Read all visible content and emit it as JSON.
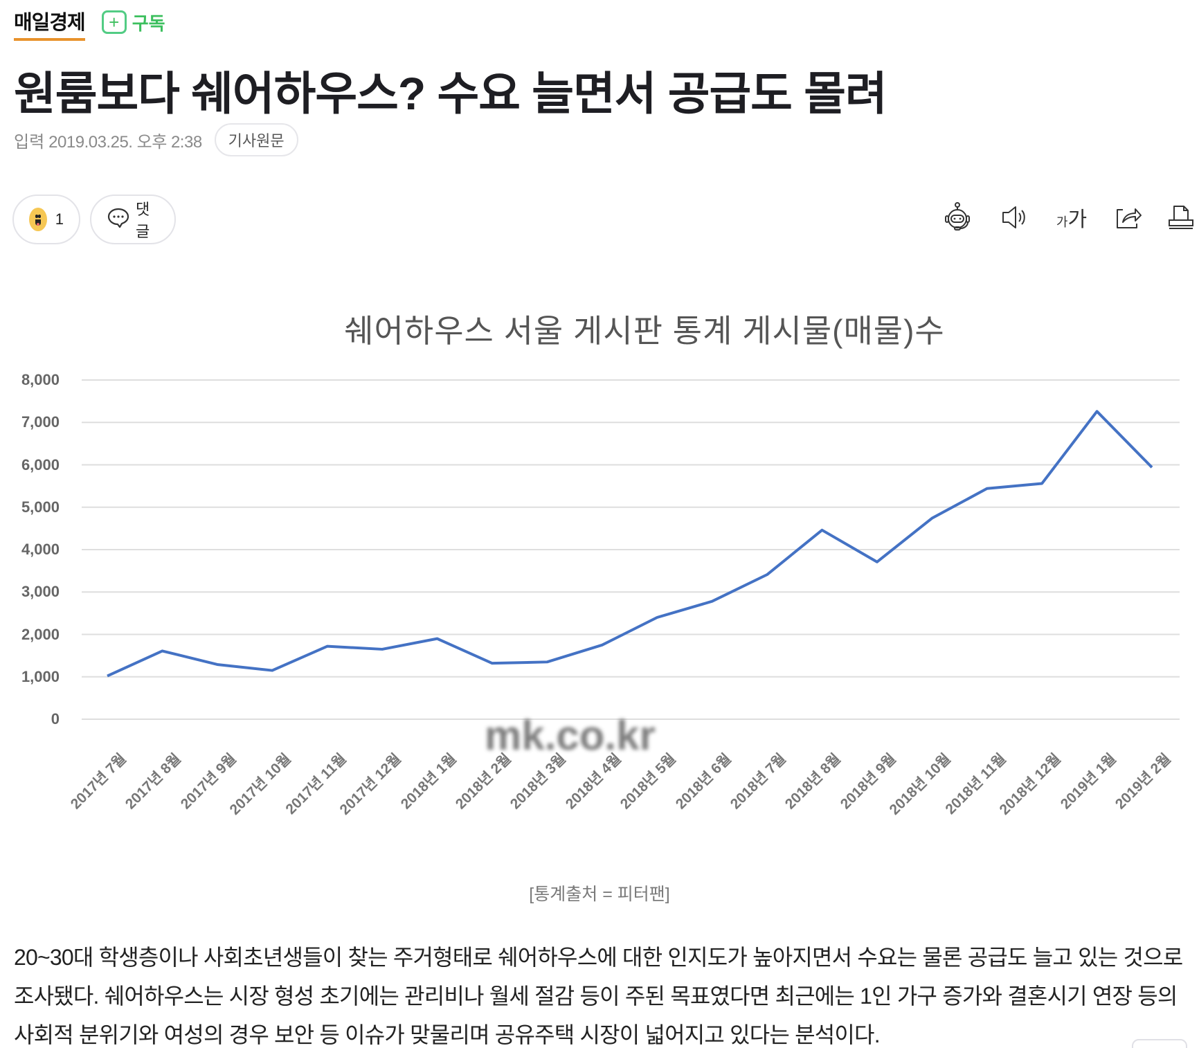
{
  "press": {
    "name": "매일경제",
    "accent_color": "#e8922c",
    "subscribe_icon": "plus-icon",
    "subscribe_label": "구독",
    "subscribe_color": "#3cbf5e"
  },
  "article": {
    "headline": "원룸보다 쉐어하우스? 수요 늘면서 공급도 몰려",
    "published_label": "입력",
    "published_date": "2019.03.25. 오후 2:38",
    "original_link_label": "기사원문"
  },
  "actions": {
    "reaction_icon": "smile-emoji-icon",
    "reaction_count": "1",
    "comment_icon": "speech-bubble-icon",
    "comment_label": "댓글"
  },
  "tools": [
    {
      "name": "summary-bot-icon"
    },
    {
      "name": "text-to-speech-icon"
    },
    {
      "name": "font-size-icon",
      "small": "가",
      "large": "가"
    },
    {
      "name": "share-icon"
    },
    {
      "name": "print-icon"
    }
  ],
  "chart_data": {
    "type": "line",
    "title": "쉐어하우스 서울 게시판 통계 게시물(매물)수",
    "xlabel": "",
    "ylabel": "",
    "ylim": [
      0,
      8000
    ],
    "yticks": [
      "0",
      "1,000",
      "2,000",
      "3,000",
      "4,000",
      "5,000",
      "6,000",
      "7,000",
      "8,000"
    ],
    "grid": true,
    "legend": "none",
    "line_color": "#4472c4",
    "categories": [
      "2017년 7월",
      "2017년 8월",
      "2017년 9월",
      "2017년 10월",
      "2017년 11월",
      "2017년 12월",
      "2018년 1월",
      "2018년 2월",
      "2018년 3월",
      "2018년 4월",
      "2018년 5월",
      "2018년 6월",
      "2018년 7월",
      "2018년 8월",
      "2018년 9월",
      "2018년 10월",
      "2018년 11월",
      "2018년 12월",
      "2019년 1월",
      "2019년 2월"
    ],
    "values": [
      1020,
      1610,
      1290,
      1150,
      1720,
      1650,
      1900,
      1320,
      1350,
      1750,
      2400,
      2780,
      3410,
      4460,
      3710,
      4740,
      5440,
      5560,
      7260,
      5940
    ],
    "watermark": "mk.co.kr"
  },
  "caption": "[통계출처 = 피터팬]",
  "body": {
    "paragraph": "20~30대 학생층이나 사회초년생들이 찾는 주거형태로 쉐어하우스에 대한 인지도가 높아지면서 수요는 물론 공급도 늘고 있는 것으로 조사됐다. 쉐어하우스는 시장 형성 초기에는 관리비나 월세 절감 등이 주된 목표였다면 최근에는 1인 가구 증가와 결혼시기 연장 등의 사회적 분위기와 여성의 경우 보안 등 이슈가 맞물리며 공유주택 시장이 넓어지고 있다는 분석이다."
  }
}
